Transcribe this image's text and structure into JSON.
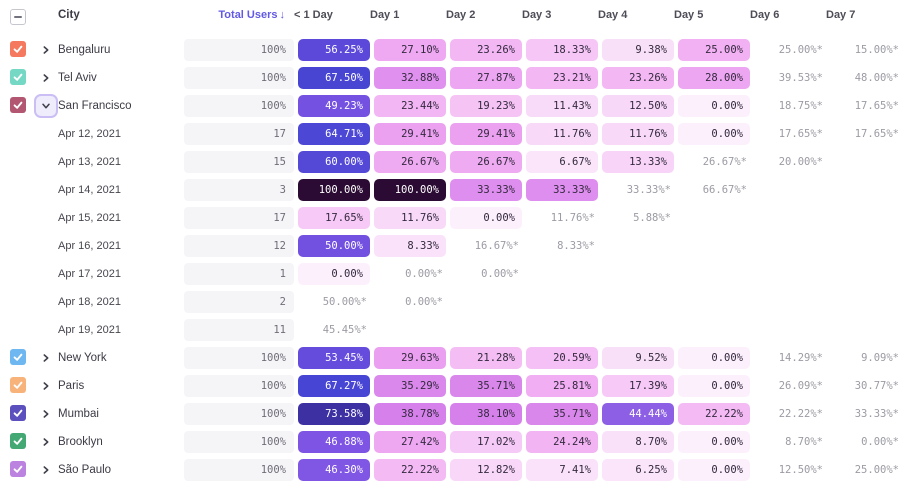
{
  "table": {
    "columns": [
      "City",
      "Total Users",
      "< 1 Day",
      "Day 1",
      "Day 2",
      "Day 3",
      "Day 4",
      "Day 5",
      "Day 6",
      "Day 7"
    ],
    "sort_arrow": "↓",
    "rows": [
      {
        "type": "city",
        "label": "Bengaluru",
        "checkbox_color": "#F4795E",
        "expanded": false,
        "total": "100%",
        "values": [
          "56.25%",
          "27.10%",
          "23.26%",
          "18.33%",
          "9.38%",
          "25.00%",
          "25.00%*",
          "15.00%*"
        ]
      },
      {
        "type": "city",
        "label": "Tel Aviv",
        "checkbox_color": "#74D8C5",
        "expanded": false,
        "total": "100%",
        "values": [
          "67.50%",
          "32.88%",
          "27.87%",
          "23.21%",
          "23.26%",
          "28.00%",
          "39.53%*",
          "48.00%*"
        ]
      },
      {
        "type": "city",
        "label": "San Francisco",
        "checkbox_color": "#B25672",
        "expanded": true,
        "total": "100%",
        "values": [
          "49.23%",
          "23.44%",
          "19.23%",
          "11.43%",
          "12.50%",
          "0.00%",
          "18.75%*",
          "17.65%*"
        ]
      },
      {
        "type": "date",
        "label": "Apr 12, 2021",
        "total": "17",
        "values": [
          "64.71%",
          "29.41%",
          "29.41%",
          "11.76%",
          "11.76%",
          "0.00%",
          "17.65%*",
          "17.65%*"
        ]
      },
      {
        "type": "date",
        "label": "Apr 13, 2021",
        "total": "15",
        "values": [
          "60.00%",
          "26.67%",
          "26.67%",
          "6.67%",
          "13.33%",
          "26.67%*",
          "20.00%*",
          null
        ]
      },
      {
        "type": "date",
        "label": "Apr 14, 2021",
        "total": "3",
        "values": [
          "100.00%",
          "100.00%",
          "33.33%",
          "33.33%",
          "33.33%*",
          "66.67%*",
          null,
          null
        ]
      },
      {
        "type": "date",
        "label": "Apr 15, 2021",
        "total": "17",
        "values": [
          "17.65%",
          "11.76%",
          "0.00%",
          "11.76%*",
          "5.88%*",
          null,
          null,
          null
        ]
      },
      {
        "type": "date",
        "label": "Apr 16, 2021",
        "total": "12",
        "values": [
          "50.00%",
          "8.33%",
          "16.67%*",
          "8.33%*",
          null,
          null,
          null,
          null
        ]
      },
      {
        "type": "date",
        "label": "Apr 17, 2021",
        "total": "1",
        "values": [
          "0.00%",
          "0.00%*",
          "0.00%*",
          null,
          null,
          null,
          null,
          null
        ]
      },
      {
        "type": "date",
        "label": "Apr 18, 2021",
        "total": "2",
        "values": [
          "50.00%*",
          "0.00%*",
          null,
          null,
          null,
          null,
          null,
          null
        ]
      },
      {
        "type": "date",
        "label": "Apr 19, 2021",
        "total": "11",
        "values": [
          "45.45%*",
          null,
          null,
          null,
          null,
          null,
          null,
          null
        ]
      },
      {
        "type": "city",
        "label": "New York",
        "checkbox_color": "#6EB7F0",
        "expanded": false,
        "total": "100%",
        "values": [
          "53.45%",
          "29.63%",
          "21.28%",
          "20.59%",
          "9.52%",
          "0.00%",
          "14.29%*",
          "9.09%*"
        ]
      },
      {
        "type": "city",
        "label": "Paris",
        "checkbox_color": "#F8B37B",
        "expanded": false,
        "total": "100%",
        "values": [
          "67.27%",
          "35.29%",
          "35.71%",
          "25.81%",
          "17.39%",
          "0.00%",
          "26.09%*",
          "30.77%*"
        ]
      },
      {
        "type": "city",
        "label": "Mumbai",
        "checkbox_color": "#5B50BE",
        "expanded": false,
        "total": "100%",
        "values": [
          "73.58%",
          "38.78%",
          "38.10%",
          "35.71%",
          "44.44%",
          "22.22%",
          "22.22%*",
          "33.33%*"
        ]
      },
      {
        "type": "city",
        "label": "Brooklyn",
        "checkbox_color": "#43A873",
        "expanded": false,
        "total": "100%",
        "values": [
          "46.88%",
          "27.42%",
          "17.02%",
          "24.24%",
          "8.70%",
          "0.00%",
          "8.70%*",
          "0.00%*"
        ]
      },
      {
        "type": "city",
        "label": "São Paulo",
        "checkbox_color": "#BC82E0",
        "expanded": false,
        "total": "100%",
        "values": [
          "46.30%",
          "22.22%",
          "12.82%",
          "7.41%",
          "6.25%",
          "0.00%",
          "12.50%*",
          "25.00%*"
        ]
      }
    ]
  },
  "colors": {
    "sort_header_accent": "#6259E4",
    "header_text": "#4D4D57",
    "label_text": "#3B3B45",
    "estimate_text": "#9B9BA4",
    "cell_text_dark": "#33293E",
    "cell_text_light": "#FFFFFF",
    "total_pill_bg": "#F5F4F7",
    "total_text": "#6E6E78",
    "expand_button_bg": "#EFECFC",
    "expand_button_border": "#CBBEF5"
  },
  "heatmap_scale": [
    [
      0,
      "#FCF0FC"
    ],
    [
      10,
      "#F9DFF9"
    ],
    [
      15,
      "#F7D0F7"
    ],
    [
      20,
      "#F5C2F5"
    ],
    [
      25,
      "#F2B1F3"
    ],
    [
      30,
      "#EA9EF0"
    ],
    [
      34,
      "#DC8BED"
    ],
    [
      39,
      "#D57FEB"
    ],
    [
      43,
      "#9565E6"
    ],
    [
      47,
      "#7C53E3"
    ],
    [
      52,
      "#6B4EDE"
    ],
    [
      57,
      "#5948D8"
    ],
    [
      63,
      "#4F49D6"
    ],
    [
      68,
      "#4644D2"
    ],
    [
      74,
      "#3C2F9E"
    ],
    [
      85,
      "#331A66"
    ],
    [
      100,
      "#2B0A33"
    ]
  ],
  "white_text_threshold": 43
}
